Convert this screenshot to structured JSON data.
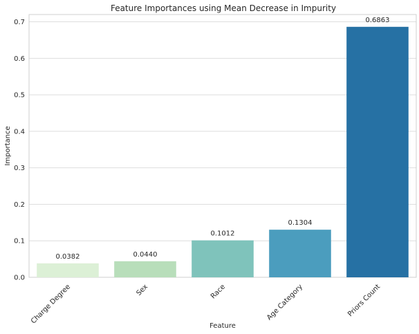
{
  "chart_data": {
    "type": "bar",
    "title": "Feature Importances using Mean Decrease in Impurity",
    "xlabel": "Feature",
    "ylabel": "Importance",
    "categories": [
      "Charge Degree",
      "Sex",
      "Race",
      "Age Category",
      "Priors Count"
    ],
    "values": [
      0.0382,
      0.044,
      0.1012,
      0.1304,
      0.6863
    ],
    "data_labels": [
      "0.0382",
      "0.0440",
      "0.1012",
      "0.1304",
      "0.6863"
    ],
    "colors": [
      "#dcf0d6",
      "#b8deba",
      "#7fc3bb",
      "#4b9dbe",
      "#2671a4"
    ],
    "ylim": [
      0,
      0.72
    ],
    "yticks": [
      0.0,
      0.1,
      0.2,
      0.3,
      0.4,
      0.5,
      0.6,
      0.7
    ],
    "ytick_labels": [
      "0.0",
      "0.1",
      "0.2",
      "0.3",
      "0.4",
      "0.5",
      "0.6",
      "0.7"
    ],
    "grid": true,
    "grid_axis": "y"
  }
}
